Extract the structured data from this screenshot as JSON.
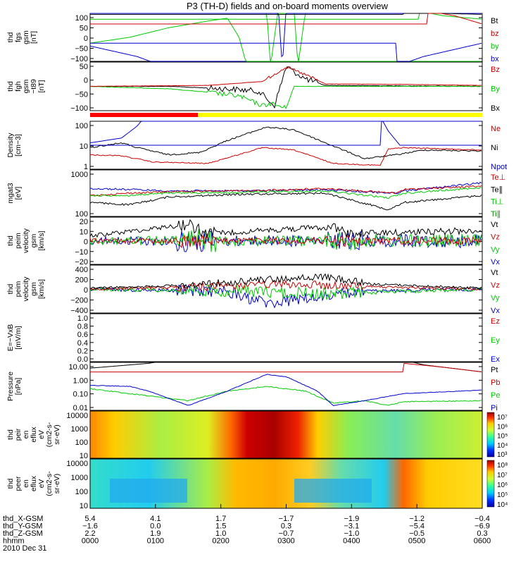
{
  "chart_data": {
    "type": "line",
    "title": "P3 (TH-D) fields and on-board moments overview",
    "panels": [
      {
        "id": "fgs",
        "ylabel": [
          "thd",
          "fgs",
          "gsm",
          "[nT]"
        ],
        "yticks": [
          "100",
          "50",
          "0",
          "−50",
          "−100"
        ],
        "legend": [
          {
            "name": "Bt",
            "color": "#000000"
          },
          {
            "name": "bz",
            "color": "#cc0000"
          },
          {
            "name": "by",
            "color": "#00cc00"
          },
          {
            "name": "bx",
            "color": "#0000cc"
          }
        ]
      },
      {
        "id": "fgh",
        "ylabel": [
          "thd",
          "fgh",
          "gsm",
          "−t89",
          "[nT]"
        ],
        "yticks": [
          "50",
          "0",
          "−50",
          "−100"
        ],
        "legend": [
          {
            "name": "Bz",
            "color": "#cc0000"
          },
          {
            "name": "By",
            "color": "#00cc00"
          },
          {
            "name": "Bx",
            "color": "#000000"
          }
        ]
      },
      {
        "id": "density",
        "ylabel": [
          "Density",
          "[cm−3]"
        ],
        "yticks": [
          "100",
          "10",
          "1"
        ],
        "legend": [
          {
            "name": "Ne",
            "color": "#cc0000"
          },
          {
            "name": "Ni",
            "color": "#000000"
          },
          {
            "name": "Npot",
            "color": "#0000cc"
          }
        ]
      },
      {
        "id": "temp",
        "ylabel": [
          "mgat3",
          "[eV]"
        ],
        "yticks": [
          "1000",
          "100"
        ],
        "legend": [
          {
            "name": "Te⊥",
            "color": "#cc0000"
          },
          {
            "name": "Te∥",
            "color": "#000000"
          },
          {
            "name": "Ti⊥",
            "color": "#00cc00"
          },
          {
            "name": "Ti∥",
            "color": "#009900"
          }
        ]
      },
      {
        "id": "vel_e",
        "ylabel": [
          "thd",
          "peim",
          "velocity",
          "gsm",
          "[km/s]"
        ],
        "yticks": [
          "20",
          "10",
          "0",
          "−10",
          "−20"
        ],
        "legend": [
          {
            "name": "Vt",
            "color": "#000000"
          },
          {
            "name": "Vz",
            "color": "#cc0000"
          },
          {
            "name": "Vy",
            "color": "#00cc00"
          },
          {
            "name": "Vx",
            "color": "#0000cc"
          }
        ]
      },
      {
        "id": "vel_i",
        "ylabel": [
          "thd",
          "peim",
          "velocity",
          "gsm",
          "[km/s]"
        ],
        "yticks": [
          "400",
          "200",
          "0",
          "−200",
          "−400"
        ],
        "legend": [
          {
            "name": "Vt",
            "color": "#000000"
          },
          {
            "name": "Vz",
            "color": "#cc0000"
          },
          {
            "name": "Vy",
            "color": "#00cc00"
          },
          {
            "name": "Vx",
            "color": "#0000cc"
          }
        ]
      },
      {
        "id": "efield",
        "ylabel": [
          "E=−VxB",
          "[mV/m]"
        ],
        "yticks": [
          "1.0",
          "0.8",
          "0.6",
          "0.4",
          "0.2",
          "0.0"
        ],
        "legend": [
          {
            "name": "Ez",
            "color": "#cc0000"
          },
          {
            "name": "Ey",
            "color": "#00cc00"
          },
          {
            "name": "Ex",
            "color": "#0000cc"
          }
        ]
      },
      {
        "id": "pressure",
        "ylabel": [
          "Pressure",
          "[nPa]"
        ],
        "yticks": [
          "10.00",
          "1.00",
          "0.10",
          "0.01"
        ],
        "legend": [
          {
            "name": "Pt",
            "color": "#000000"
          },
          {
            "name": "Pb",
            "color": "#cc0000"
          },
          {
            "name": "Pe",
            "color": "#00cc00"
          },
          {
            "name": "Pi",
            "color": "#0000cc"
          }
        ]
      },
      {
        "id": "spec_i",
        "ylabel": [
          "thd",
          "peir",
          "en",
          "eflux",
          "eV",
          "(cm2-s-",
          "sr-eV)"
        ],
        "yticks": [
          "10000",
          "1000",
          "100",
          "10"
        ],
        "colorbar": [
          "10⁷",
          "10⁶",
          "10⁵",
          "10⁴",
          "10³"
        ]
      },
      {
        "id": "spec_e",
        "ylabel": [
          "thd",
          "peer",
          "en",
          "eflux",
          "eV",
          "(cm2-s-",
          "sr-eV)"
        ],
        "yticks": [
          "10000",
          "1000",
          "100",
          "10"
        ],
        "colorbar": [
          "10⁸",
          "10⁷",
          "10⁶",
          "10⁵",
          "10⁴"
        ]
      }
    ],
    "x_axis": {
      "rows": [
        {
          "label": "thd_X-GSM",
          "values": [
            "5.4",
            "4.1",
            "1.7",
            "−1.7",
            "−1.9",
            "−1.2",
            "−0.4"
          ]
        },
        {
          "label": "thd_Y-GSM",
          "values": [
            "−1.6",
            "0.0",
            "1.5",
            "0.3",
            "−3.1",
            "−5.4",
            "−6.9"
          ]
        },
        {
          "label": "thd_Z-GSM",
          "values": [
            "2.2",
            "1.9",
            "1.0",
            "−0.7",
            "−1.0",
            "−0.5",
            "0.3"
          ]
        },
        {
          "label": "hhmm",
          "values": [
            "0000",
            "0100",
            "0200",
            "0300",
            "0400",
            "0500",
            "0600"
          ]
        }
      ],
      "date": "2010 Dec 31"
    },
    "colors": {
      "black": "#000000",
      "red": "#cc0000",
      "green": "#00cc00",
      "blue": "#0000cc",
      "bar_red": "#ff0000",
      "bar_yellow": "#ffff00"
    }
  }
}
